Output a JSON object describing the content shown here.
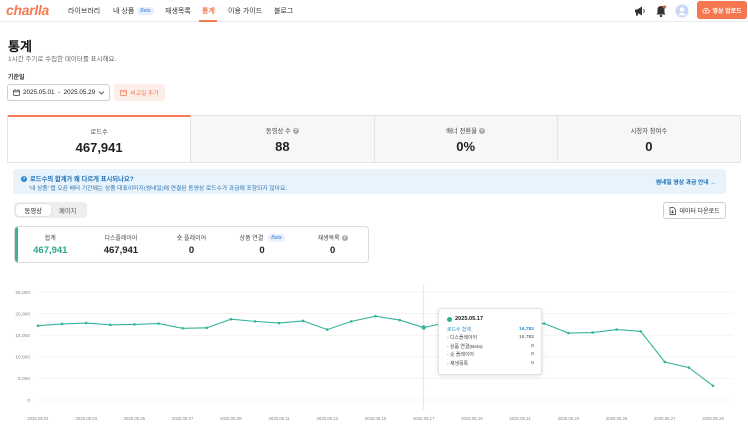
{
  "nav": {
    "logo": "charlla",
    "items": [
      {
        "label": "라이브러리"
      },
      {
        "label": "내 상품",
        "badge": "Beta"
      },
      {
        "label": "재생목록"
      },
      {
        "label": "통계"
      },
      {
        "label": "이용 가이드"
      },
      {
        "label": "블로그"
      }
    ],
    "active_index": 3,
    "upload_label": "영상 업로드",
    "accent_color": "#f47b53"
  },
  "header": {
    "title": "통계",
    "subtitle": "1시간 주기로 수집한 데이터를 표시해요.",
    "date_label": "기준일",
    "date_range": "2025.05.01  -  2025.05.29",
    "compare_label": "비교일 추가"
  },
  "metrics": [
    {
      "label": "로드수",
      "value": "467,941",
      "info": false
    },
    {
      "label": "동영상 수",
      "value": "88",
      "info": true
    },
    {
      "label": "배너 전환율",
      "value": "0%",
      "info": true
    },
    {
      "label": "시청자 참여수",
      "value": "0",
      "info": false
    }
  ],
  "banner": {
    "title": "로드수의 합계가 왜 다르게 표시되나요?",
    "description": "'내 상품' 탭 오픈 베타 기간에는 상품 대표이미지(썸네일)에 연결된 동영상 로드수가 과금에 포함되지 않아요.",
    "link": "썸네일 영상 과금 안내 →"
  },
  "toggle": {
    "options": [
      "동영상",
      "페이지"
    ],
    "active_index": 0
  },
  "download_label": "데이터 다운로드",
  "summary": [
    {
      "label": "합계",
      "value": "467,941"
    },
    {
      "label": "디스플레이어",
      "value": "467,941"
    },
    {
      "label": "숏 플레이어",
      "value": "0"
    },
    {
      "label": "상품 연결",
      "badge": "Beta",
      "value": "0"
    },
    {
      "label": "재생목록",
      "info": true,
      "value": "0"
    }
  ],
  "tooltip": {
    "date": "2025.05.17",
    "rows": [
      {
        "label": "로드수 합계",
        "value": "16,782"
      },
      {
        "label": "- 디스플레이어",
        "value": "16,782"
      },
      {
        "label": "- 상품 연결(Beta)",
        "value": "0"
      },
      {
        "label": "- 숏 플레이어",
        "value": "0"
      },
      {
        "label": "- 재생목록",
        "value": "0"
      }
    ]
  },
  "chart_data": {
    "type": "line",
    "ylim": [
      0,
      25000
    ],
    "yticks": [
      "0",
      "5,000",
      "10,000",
      "15,000",
      "20,000",
      "25,000"
    ],
    "xticks": [
      "2025.05.01",
      "2025.05.03",
      "2025.05.05",
      "2025.05.07",
      "2025.05.09",
      "2025.05.11",
      "2025.05.13",
      "2025.05.15",
      "2025.05.17",
      "2025.05.19",
      "2025.05.21",
      "2025.05.23",
      "2025.05.25",
      "2025.05.27",
      "2025.05.29"
    ],
    "x": [
      "2025.05.01",
      "2025.05.02",
      "2025.05.03",
      "2025.05.04",
      "2025.05.05",
      "2025.05.06",
      "2025.05.07",
      "2025.05.08",
      "2025.05.09",
      "2025.05.10",
      "2025.05.11",
      "2025.05.12",
      "2025.05.13",
      "2025.05.14",
      "2025.05.15",
      "2025.05.16",
      "2025.05.17",
      "2025.05.18",
      "2025.05.19",
      "2025.05.20",
      "2025.05.21",
      "2025.05.22",
      "2025.05.23",
      "2025.05.24",
      "2025.05.25",
      "2025.05.26",
      "2025.05.27",
      "2025.05.28",
      "2025.05.29"
    ],
    "series": [
      {
        "values": [
          17200,
          17600,
          17800,
          17400,
          17500,
          17700,
          16600,
          16700,
          18700,
          18200,
          17800,
          18300,
          16300,
          18200,
          19400,
          18500,
          16782,
          18000,
          18700,
          17500,
          17800,
          17700,
          15500,
          15600,
          16300,
          15900,
          8800,
          7500,
          3300
        ],
        "color": "#35b39a"
      }
    ],
    "highlight": "2025.05.17",
    "grid": true
  }
}
